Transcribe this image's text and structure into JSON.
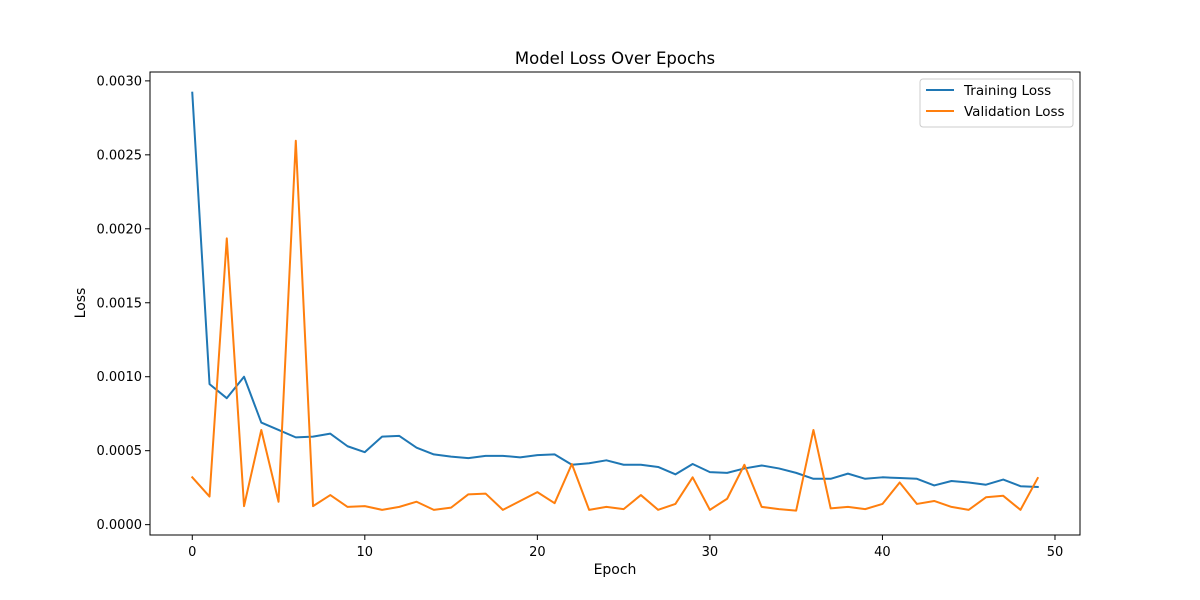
{
  "chart_data": {
    "type": "line",
    "title": "Model Loss Over Epochs",
    "xlabel": "Epoch",
    "ylabel": "Loss",
    "xlim": [
      -2.45,
      51.45
    ],
    "ylim": [
      -7e-05,
      0.00306
    ],
    "x_ticks": [
      0,
      10,
      20,
      30,
      40,
      50
    ],
    "y_ticks": [
      0.0,
      0.0005,
      0.001,
      0.0015,
      0.002,
      0.0025,
      0.003
    ],
    "y_tick_labels": [
      "0.0000",
      "0.0005",
      "0.0010",
      "0.0015",
      "0.0020",
      "0.0025",
      "0.0030"
    ],
    "grid": false,
    "legend_position": "top-right",
    "x": [
      0,
      1,
      2,
      3,
      4,
      5,
      6,
      7,
      8,
      9,
      10,
      11,
      12,
      13,
      14,
      15,
      16,
      17,
      18,
      19,
      20,
      21,
      22,
      23,
      24,
      25,
      26,
      27,
      28,
      29,
      30,
      31,
      32,
      33,
      34,
      35,
      36,
      37,
      38,
      39,
      40,
      41,
      42,
      43,
      44,
      45,
      46,
      47,
      48,
      49
    ],
    "series": [
      {
        "name": "Training Loss",
        "color": "#1f77b4",
        "values": [
          0.00292,
          0.00095,
          0.000855,
          0.001,
          0.00069,
          0.00064,
          0.00059,
          0.000595,
          0.000615,
          0.00053,
          0.00049,
          0.000595,
          0.0006,
          0.00052,
          0.000475,
          0.00046,
          0.00045,
          0.000465,
          0.000465,
          0.000455,
          0.00047,
          0.000475,
          0.000405,
          0.000415,
          0.000435,
          0.000405,
          0.000405,
          0.00039,
          0.00034,
          0.00041,
          0.000355,
          0.00035,
          0.00038,
          0.0004,
          0.00038,
          0.00035,
          0.00031,
          0.00031,
          0.000345,
          0.00031,
          0.00032,
          0.000315,
          0.00031,
          0.000265,
          0.000295,
          0.000285,
          0.00027,
          0.000305,
          0.00026,
          0.000255
        ]
      },
      {
        "name": "Validation Loss",
        "color": "#ff7f0e",
        "values": [
          0.00032,
          0.00019,
          0.001935,
          0.000125,
          0.00064,
          0.000155,
          0.002595,
          0.000125,
          0.0002,
          0.00012,
          0.000125,
          0.0001,
          0.00012,
          0.000155,
          0.0001,
          0.000115,
          0.000205,
          0.00021,
          0.0001,
          0.00016,
          0.00022,
          0.000145,
          0.00041,
          0.0001,
          0.00012,
          0.000105,
          0.0002,
          0.0001,
          0.00014,
          0.00032,
          0.0001,
          0.000175,
          0.000405,
          0.00012,
          0.000105,
          9.5e-05,
          0.00064,
          0.00011,
          0.00012,
          0.000105,
          0.00014,
          0.000285,
          0.00014,
          0.00016,
          0.00012,
          0.0001,
          0.000185,
          0.000195,
          0.0001,
          0.000315
        ]
      }
    ]
  }
}
